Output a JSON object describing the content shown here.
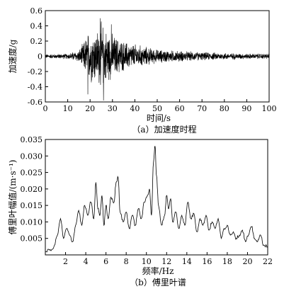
{
  "chart_data": [
    {
      "type": "line",
      "title": "",
      "caption": "（a）加速度时程",
      "xlabel": "时间/s",
      "ylabel": "加速度/g",
      "xlim": [
        0,
        100
      ],
      "ylim": [
        -0.6,
        0.6
      ],
      "xticks": [
        "0",
        "10",
        "20",
        "30",
        "40",
        "50",
        "60",
        "70",
        "80",
        "90",
        "100"
      ],
      "yticks": [
        "0.6",
        "0.4",
        "0.2",
        "0",
        "-0.2",
        "-0.4",
        "-0.6"
      ],
      "grid": false,
      "series": [
        {
          "envelope": {
            "t": [
              0,
              10,
              15,
              17,
              19,
              21,
              23,
              25,
              27,
              29,
              31,
              35,
              40,
              45,
              50,
              60,
              70,
              80,
              90,
              100
            ],
            "amp": [
              0.03,
              0.04,
              0.09,
              0.2,
              0.35,
              0.4,
              0.38,
              0.5,
              0.4,
              0.35,
              0.3,
              0.22,
              0.18,
              0.14,
              0.1,
              0.08,
              0.06,
              0.05,
              0.04,
              0.04
            ]
          },
          "peaks": [
            {
              "t": 19.0,
              "v": -0.5
            },
            {
              "t": 24.5,
              "v": 0.5
            },
            {
              "t": 26.0,
              "v": -0.58
            },
            {
              "t": 29.5,
              "v": 0.42
            }
          ]
        }
      ]
    },
    {
      "type": "line",
      "title": "",
      "caption": "（b）傅里叶谱",
      "xlabel": "频率/Hz",
      "ylabel": "傅里叶幅值/(m·s⁻¹)",
      "xlim": [
        0,
        22
      ],
      "ylim": [
        0,
        0.035
      ],
      "xticks": [
        "2",
        "4",
        "6",
        "8",
        "10",
        "12",
        "14",
        "16",
        "18",
        "20",
        "22"
      ],
      "yticks": [
        "0.035",
        "0.030",
        "0.025",
        "0.020",
        "0.015",
        "0.010",
        "0.005"
      ],
      "grid": false,
      "series": [
        {
          "x": [
            0,
            0.4,
            0.8,
            1.2,
            1.5,
            1.8,
            2.1,
            2.4,
            2.7,
            3.0,
            3.3,
            3.6,
            3.9,
            4.2,
            4.5,
            4.8,
            5.0,
            5.2,
            5.4,
            5.6,
            5.8,
            6.0,
            6.2,
            6.5,
            6.8,
            7.0,
            7.2,
            7.4,
            7.7,
            8.0,
            8.3,
            8.6,
            8.9,
            9.2,
            9.5,
            9.8,
            10.1,
            10.3,
            10.5,
            10.7,
            10.85,
            11.0,
            11.2,
            11.5,
            11.8,
            12.0,
            12.2,
            12.4,
            12.6,
            12.9,
            13.2,
            13.5,
            13.8,
            14.1,
            14.4,
            14.7,
            15.0,
            15.3,
            15.6,
            15.9,
            16.2,
            16.5,
            16.8,
            17.1,
            17.4,
            17.7,
            18.0,
            18.3,
            18.6,
            18.9,
            19.2,
            19.5,
            19.8,
            20.1,
            20.4,
            20.7,
            21.0,
            21.3,
            21.6,
            22.0
          ],
          "y": [
            0.001,
            0.0015,
            0.002,
            0.006,
            0.011,
            0.005,
            0.008,
            0.006,
            0.004,
            0.009,
            0.0135,
            0.009,
            0.015,
            0.012,
            0.016,
            0.011,
            0.022,
            0.014,
            0.012,
            0.018,
            0.009,
            0.015,
            0.011,
            0.0175,
            0.016,
            0.022,
            0.0235,
            0.013,
            0.01,
            0.013,
            0.008,
            0.012,
            0.009,
            0.014,
            0.011,
            0.016,
            0.018,
            0.02,
            0.012,
            0.028,
            0.033,
            0.024,
            0.015,
            0.009,
            0.012,
            0.018,
            0.014,
            0.017,
            0.01,
            0.013,
            0.008,
            0.012,
            0.009,
            0.016,
            0.011,
            0.0125,
            0.007,
            0.011,
            0.009,
            0.012,
            0.0075,
            0.01,
            0.008,
            0.011,
            0.005,
            0.008,
            0.009,
            0.006,
            0.007,
            0.005,
            0.006,
            0.0075,
            0.004,
            0.006,
            0.0085,
            0.005,
            0.004,
            0.006,
            0.003,
            0.0025
          ]
        }
      ]
    }
  ]
}
